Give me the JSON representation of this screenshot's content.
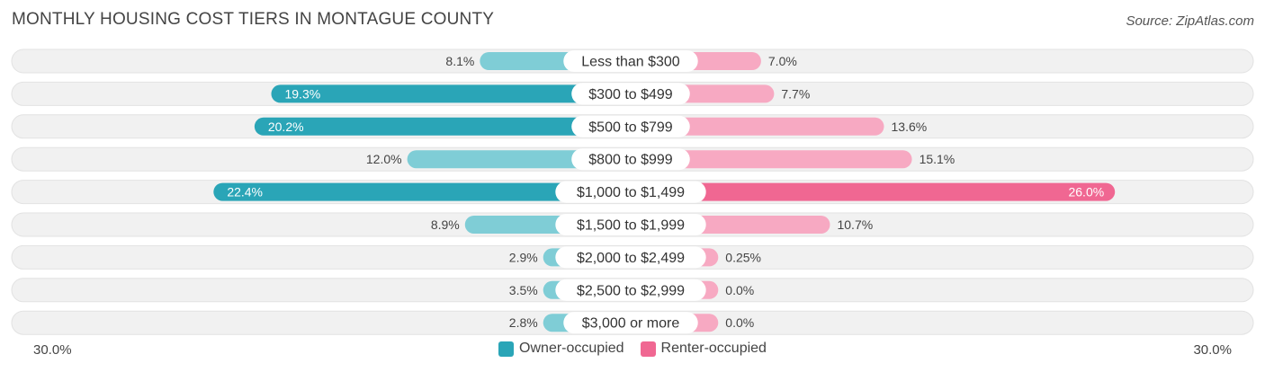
{
  "title": "MONTHLY HOUSING COST TIERS IN MONTAGUE COUNTY",
  "source": "Source: ZipAtlas.com",
  "colors": {
    "owner": "#2aa5b7",
    "owner_light": "#7fcdd6",
    "renter": "#f06792",
    "renter_light": "#f7a9c2",
    "row_bg": "#f1f1f1"
  },
  "chart_data": {
    "type": "bar",
    "orientation": "horizontal-diverging",
    "categories": [
      "Less than $300",
      "$300 to $499",
      "$500 to $799",
      "$800 to $999",
      "$1,000 to $1,499",
      "$1,500 to $1,999",
      "$2,000 to $2,499",
      "$2,500 to $2,999",
      "$3,000 or more"
    ],
    "series": [
      {
        "name": "Owner-occupied",
        "values": [
          8.1,
          19.3,
          20.2,
          12.0,
          22.4,
          8.9,
          2.9,
          3.5,
          2.8
        ],
        "labels": [
          "8.1%",
          "19.3%",
          "20.2%",
          "12.0%",
          "22.4%",
          "8.9%",
          "2.9%",
          "3.5%",
          "2.8%"
        ]
      },
      {
        "name": "Renter-occupied",
        "values": [
          7.0,
          7.7,
          13.6,
          15.1,
          26.0,
          10.7,
          0.25,
          0.0,
          0.0
        ],
        "labels": [
          "7.0%",
          "7.7%",
          "13.6%",
          "15.1%",
          "26.0%",
          "10.7%",
          "0.25%",
          "0.0%",
          "0.0%"
        ]
      }
    ],
    "xlim": [
      -30,
      30
    ],
    "axis_min_label": "30.0%",
    "axis_max_label": "30.0%",
    "legend_position": "bottom-center",
    "grid": false
  }
}
